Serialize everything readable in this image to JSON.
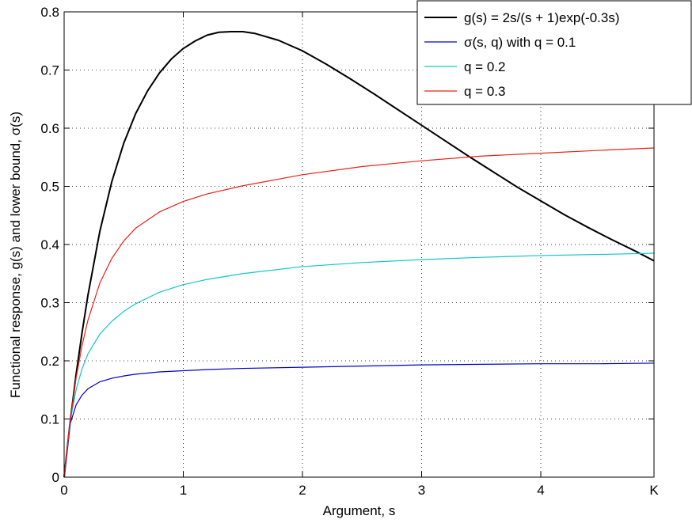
{
  "chart_data": {
    "type": "line",
    "title": "",
    "xlabel": "Argument, s",
    "ylabel": "Functional response, g(s) and lower bound, σ(s)",
    "xlim": [
      0,
      4.95
    ],
    "ylim": [
      0,
      0.8
    ],
    "x_ticks": [
      {
        "value": 0,
        "label": "0"
      },
      {
        "value": 1,
        "label": "1"
      },
      {
        "value": 2,
        "label": "2"
      },
      {
        "value": 3,
        "label": "3"
      },
      {
        "value": 4,
        "label": "4"
      },
      {
        "value": 4.95,
        "label": "K"
      }
    ],
    "y_ticks": [
      {
        "value": 0,
        "label": "0"
      },
      {
        "value": 0.1,
        "label": "0.1"
      },
      {
        "value": 0.2,
        "label": "0.2"
      },
      {
        "value": 0.3,
        "label": "0.3"
      },
      {
        "value": 0.4,
        "label": "0.4"
      },
      {
        "value": 0.5,
        "label": "0.5"
      },
      {
        "value": 0.6,
        "label": "0.6"
      },
      {
        "value": 0.7,
        "label": "0.7"
      },
      {
        "value": 0.8,
        "label": "0.8"
      }
    ],
    "grid": true,
    "legend_position": "top-right",
    "series": [
      {
        "name": "g(s) = 2s/(s + 1)exp(-0.3s)",
        "color": "#000000",
        "x": [
          0,
          0.05,
          0.1,
          0.15,
          0.2,
          0.3,
          0.4,
          0.5,
          0.6,
          0.7,
          0.8,
          0.9,
          1.0,
          1.1,
          1.2,
          1.3,
          1.4,
          1.5,
          1.6,
          1.8,
          2.0,
          2.2,
          2.4,
          2.6,
          2.8,
          3.0,
          3.2,
          3.4,
          3.6,
          3.8,
          4.0,
          4.2,
          4.4,
          4.6,
          4.8,
          4.95
        ],
        "y": [
          0,
          0.094,
          0.176,
          0.248,
          0.313,
          0.423,
          0.508,
          0.574,
          0.625,
          0.664,
          0.695,
          0.719,
          0.737,
          0.75,
          0.76,
          0.765,
          0.766,
          0.766,
          0.763,
          0.751,
          0.733,
          0.71,
          0.685,
          0.659,
          0.632,
          0.605,
          0.578,
          0.551,
          0.525,
          0.499,
          0.475,
          0.451,
          0.429,
          0.408,
          0.388,
          0.372
        ]
      },
      {
        "name": "σ(s, q) with q = 0.1",
        "color": "#0000cc",
        "x": [
          0,
          0.05,
          0.1,
          0.15,
          0.2,
          0.3,
          0.4,
          0.5,
          0.6,
          0.8,
          1.0,
          1.2,
          1.5,
          2.0,
          2.5,
          3.0,
          3.5,
          4.0,
          4.5,
          4.95
        ],
        "y": [
          0,
          0.091,
          0.124,
          0.141,
          0.152,
          0.164,
          0.17,
          0.174,
          0.177,
          0.181,
          0.183,
          0.185,
          0.187,
          0.189,
          0.191,
          0.193,
          0.194,
          0.195,
          0.195,
          0.196
        ]
      },
      {
        "name": "q = 0.2",
        "color": "#11c6c6",
        "x": [
          0,
          0.05,
          0.1,
          0.15,
          0.2,
          0.3,
          0.4,
          0.5,
          0.6,
          0.8,
          1.0,
          1.2,
          1.5,
          2.0,
          2.5,
          3.0,
          3.5,
          4.0,
          4.5,
          4.95
        ],
        "y": [
          0,
          0.095,
          0.15,
          0.186,
          0.212,
          0.246,
          0.268,
          0.285,
          0.298,
          0.318,
          0.331,
          0.34,
          0.35,
          0.362,
          0.369,
          0.374,
          0.378,
          0.381,
          0.383,
          0.385
        ]
      },
      {
        "name": "q = 0.3",
        "color": "#e8211a",
        "x": [
          0,
          0.05,
          0.1,
          0.15,
          0.2,
          0.3,
          0.4,
          0.5,
          0.6,
          0.8,
          1.0,
          1.2,
          1.5,
          2.0,
          2.5,
          3.0,
          3.5,
          4.0,
          4.5,
          4.95
        ],
        "y": [
          0,
          0.096,
          0.17,
          0.226,
          0.27,
          0.334,
          0.376,
          0.406,
          0.428,
          0.456,
          0.474,
          0.487,
          0.501,
          0.52,
          0.534,
          0.544,
          0.552,
          0.557,
          0.562,
          0.566
        ]
      }
    ]
  }
}
